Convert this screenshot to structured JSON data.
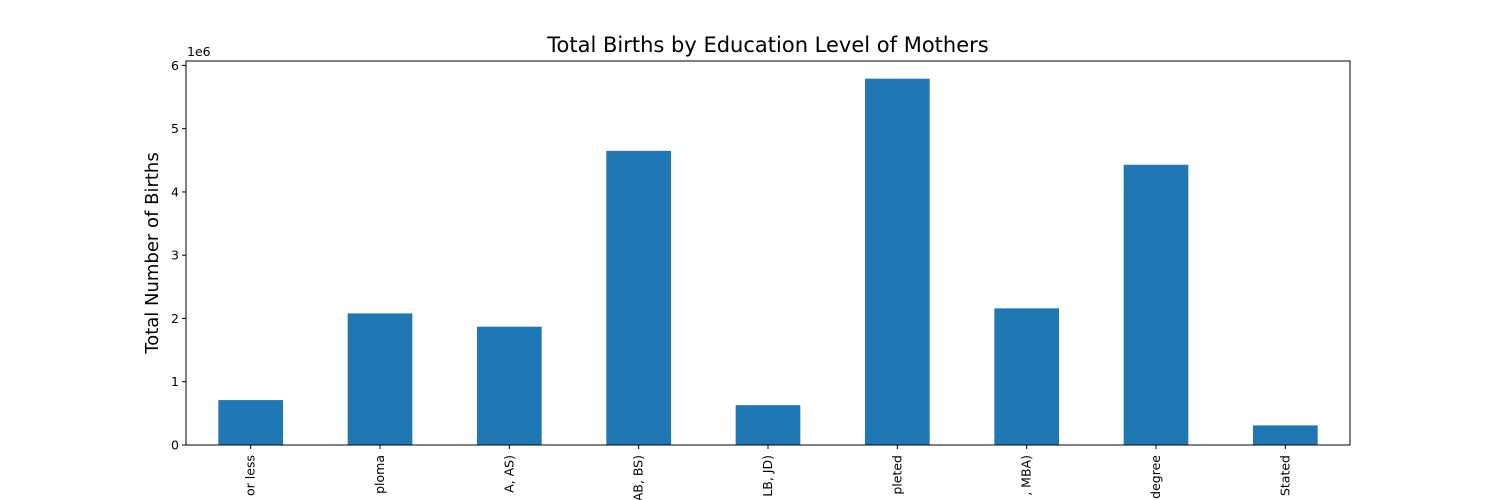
{
  "chart_data": {
    "type": "bar",
    "title": "Total Births by Education Level of Mothers",
    "xlabel": "",
    "ylabel": "Total Number of Births",
    "y_offset_label": "1e6",
    "categories": [
      "or less",
      "ploma",
      "A, AS)",
      "AB, BS)",
      "LB, JD)",
      "pleted",
      ", MBA)",
      "degree",
      "Stated"
    ],
    "values": [
      710000,
      2080000,
      1870000,
      4650000,
      630000,
      5790000,
      2160000,
      4430000,
      310000
    ],
    "ylim": [
      0,
      6070000
    ],
    "y_ticks": [
      0,
      1000000,
      2000000,
      3000000,
      4000000,
      5000000,
      6000000
    ],
    "y_tick_labels": [
      "0",
      "1",
      "2",
      "3",
      "4",
      "5",
      "6"
    ],
    "grid": false,
    "legend": "none",
    "bar_color": "#1f77b4"
  }
}
